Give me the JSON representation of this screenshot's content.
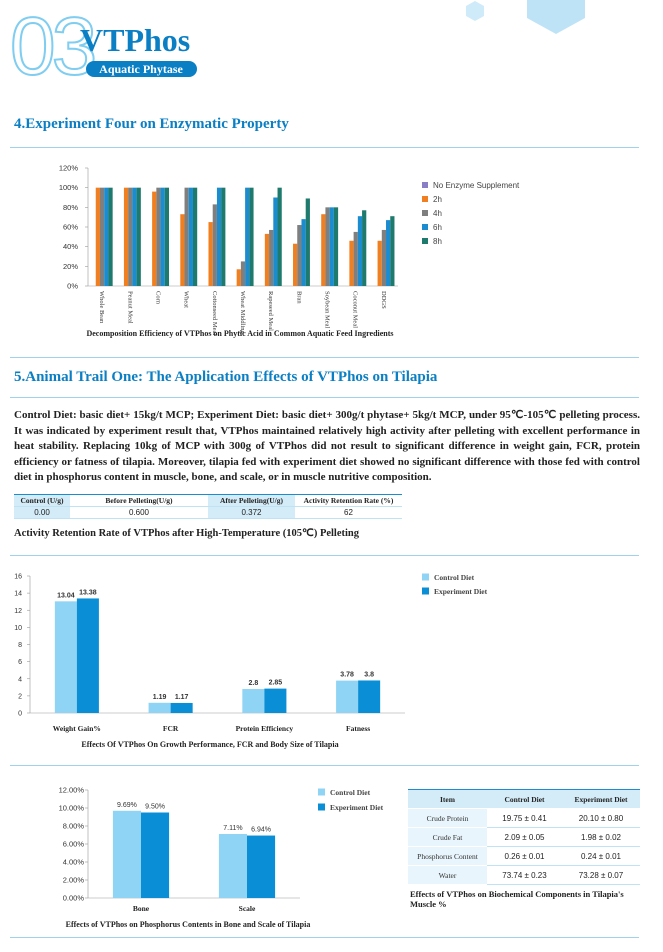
{
  "header": {
    "number": "03",
    "title": "VTPhos",
    "badge": "Aquatic Phytase"
  },
  "sections": [
    {
      "title": "4.Experiment Four on Enzymatic Property"
    },
    {
      "title": "5.Animal Trail One: The Application Effects of VTPhos on Tilapia",
      "paragraph": "Control Diet: basic diet+ 15kg/t MCP; Experiment Diet: basic diet+ 300g/t phytase+ 5kg/t MCP, under 95℃-105℃ pelleting process. It was indicated by experiment result that, VTPhos maintained relatively high activity after pelleting with excellent performance in heat stability. Replacing 10kg of MCP with 300g of VTPhos did not result to significant difference in weight gain, FCR, protein efficiency or fatness of tilapia. Moreover, tilapia fed with experiment diet showed no significant difference with those fed with control diet in phosphorus content in muscle, bone, and scale, or in muscle nutritive composition."
    }
  ],
  "chart_data": [
    {
      "type": "bar",
      "title": "Decomposition Efficiency of VTPhos on Phytic Acid in Common Aquatic Feed Ingredients",
      "categories": [
        "Whole Bean",
        "Peanut Meal",
        "Corn",
        "Wheat",
        "Cottonseed Meal",
        "Wheat Middling",
        "Rapeseed Meal",
        "Bran",
        "Soybean Meal",
        "Coconut Meal",
        "DDGS"
      ],
      "series": [
        {
          "name": "No Enzyme Supplement",
          "color": "#8a7fc7",
          "values": [
            0,
            0,
            0,
            0,
            0,
            0,
            0,
            0,
            0,
            0,
            0
          ]
        },
        {
          "name": "2h",
          "color": "#f07f22",
          "values": [
            100,
            100,
            96,
            73,
            65,
            17,
            53,
            43,
            73,
            46,
            46
          ]
        },
        {
          "name": "4h",
          "color": "#7f7f7f",
          "values": [
            100,
            100,
            100,
            100,
            83,
            25,
            57,
            62,
            80,
            55,
            57
          ]
        },
        {
          "name": "6h",
          "color": "#1a8ccf",
          "values": [
            100,
            100,
            100,
            100,
            100,
            100,
            90,
            68,
            80,
            71,
            67
          ]
        },
        {
          "name": "8h",
          "color": "#1f7a6e",
          "values": [
            100,
            100,
            100,
            100,
            100,
            100,
            100,
            89,
            80,
            77,
            71
          ]
        }
      ],
      "ylim": [
        0,
        120
      ],
      "yticks": [
        {
          "value": 0,
          "label": "0%"
        },
        {
          "value": 20,
          "label": "20%"
        },
        {
          "value": 40,
          "label": "40%"
        },
        {
          "value": 60,
          "label": "60%"
        },
        {
          "value": 80,
          "label": "80%"
        },
        {
          "value": 100,
          "label": "100%"
        },
        {
          "value": 120,
          "label": "120%"
        }
      ],
      "grid": false
    },
    {
      "type": "bar",
      "title": "Effects Of VTPhos On Growth Performance, FCR and Body Size of Tilapia",
      "categories": [
        "Weight Gain%",
        "FCR",
        "Protein Efficiency",
        "Fatness"
      ],
      "series": [
        {
          "name": "Control Diet",
          "color": "#8fd3f5",
          "values": [
            13.04,
            1.19,
            2.8,
            3.78
          ]
        },
        {
          "name": "Experiment Diet",
          "color": "#0a8fd6",
          "values": [
            13.38,
            1.17,
            2.85,
            3.8
          ]
        }
      ],
      "ylim": [
        0,
        16
      ],
      "yticks": [
        0,
        2,
        4,
        6,
        8,
        10,
        12,
        14,
        16
      ],
      "data_labels": true,
      "grid": false
    },
    {
      "type": "bar",
      "title": "Effects of VTPhos on Phosphorus Contents in Bone and Scale of Tilapia",
      "categories": [
        "Bone",
        "Scale"
      ],
      "series": [
        {
          "name": "Control Diet",
          "color": "#8fd3f5",
          "values": [
            9.69,
            7.11
          ],
          "value_labels": [
            "9.69%",
            "7.11%"
          ]
        },
        {
          "name": "Experiment Diet",
          "color": "#0a8fd6",
          "values": [
            9.5,
            6.94
          ],
          "value_labels": [
            "9.50%",
            "6.94%"
          ]
        }
      ],
      "ylim": [
        0,
        12
      ],
      "yticks": [
        {
          "value": 0,
          "label": "0.00%"
        },
        {
          "value": 2,
          "label": "2.00%"
        },
        {
          "value": 4,
          "label": "4.00%"
        },
        {
          "value": 6,
          "label": "6.00%"
        },
        {
          "value": 8,
          "label": "8.00%"
        },
        {
          "value": 10,
          "label": "10.00%"
        },
        {
          "value": 12,
          "label": "12.00%"
        }
      ],
      "grid": false
    }
  ],
  "table_1": {
    "header": [
      "Control (U/g)",
      "Before Pelleting(U/g)",
      "After Pelleting(U/g)",
      "Activity Retention Rate (%)"
    ],
    "rows": [
      [
        "0.00",
        "0.600",
        "0.372",
        "62"
      ]
    ],
    "caption": "Activity Retention Rate of VTPhos after High-Temperature (105℃) Pelleting"
  },
  "table_2": {
    "header": [
      "Item",
      "Control Diet",
      "Experiment Diet"
    ],
    "rows": [
      [
        "Crude Protein",
        "19.75 ± 0.41",
        "20.10 ± 0.80"
      ],
      [
        "Crude Fat",
        "2.09 ± 0.05",
        "1.98 ± 0.02"
      ],
      [
        "Phosphorus Content",
        "0.26 ± 0.01",
        "0.24 ± 0.01"
      ],
      [
        "Water",
        "73.74 ± 0.23",
        "73.28 ± 0.07"
      ]
    ],
    "caption": "Effects of VTPhos on Biochemical Components in Tilapia's Muscle %"
  }
}
